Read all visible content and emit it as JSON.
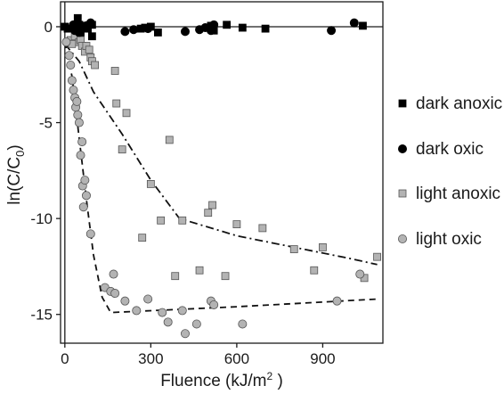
{
  "chart_data": {
    "type": "scatter",
    "title": "",
    "xlabel": {
      "main": "Fluence (kJ/m",
      "sup": "2",
      "tail": " )"
    },
    "ylabel": {
      "main": "ln(C/C",
      "sub": "0",
      "tail": ")"
    },
    "xlim": [
      -15,
      1110
    ],
    "ylim": [
      -16.5,
      1.3
    ],
    "xticks": [
      0,
      300,
      600,
      900
    ],
    "yticks": [
      0,
      -5,
      -10,
      -15
    ],
    "grid": false,
    "legend_position": "right",
    "colors": {
      "dark": "#000000",
      "light_fill": "#b3b3b3",
      "light_stroke": "#555555"
    },
    "series": [
      {
        "name": "dark anoxic",
        "marker": "square",
        "style": "dark",
        "points": [
          [
            0,
            0
          ],
          [
            10,
            -0.1
          ],
          [
            40,
            -0.2
          ],
          [
            45,
            0.45
          ],
          [
            50,
            0.1
          ],
          [
            55,
            -0.3
          ],
          [
            75,
            0.05
          ],
          [
            80,
            -0.1
          ],
          [
            95,
            -0.5
          ],
          [
            95,
            0.1
          ],
          [
            265,
            -0.1
          ],
          [
            280,
            -0.05
          ],
          [
            300,
            0
          ],
          [
            325,
            -0.3
          ],
          [
            500,
            -0.05
          ],
          [
            510,
            0.05
          ],
          [
            520,
            -0.2
          ],
          [
            565,
            0.1
          ],
          [
            620,
            -0.05
          ],
          [
            700,
            -0.1
          ],
          [
            1040,
            0.05
          ]
        ]
      },
      {
        "name": "dark oxic",
        "marker": "circle",
        "style": "dark",
        "points": [
          [
            30,
            0.1
          ],
          [
            35,
            -0.2
          ],
          [
            50,
            -0.3
          ],
          [
            75,
            0.05
          ],
          [
            90,
            0.2
          ],
          [
            210,
            -0.25
          ],
          [
            240,
            -0.15
          ],
          [
            290,
            -0.1
          ],
          [
            420,
            -0.25
          ],
          [
            470,
            -0.15
          ],
          [
            490,
            -0.05
          ],
          [
            510,
            -0.2
          ],
          [
            520,
            0.1
          ],
          [
            930,
            -0.2
          ],
          [
            1010,
            0.2
          ]
        ]
      },
      {
        "name": "light anoxic",
        "marker": "square",
        "style": "light",
        "points": [
          [
            20,
            -0.7
          ],
          [
            25,
            -0.9
          ],
          [
            35,
            -0.5
          ],
          [
            50,
            -0.8
          ],
          [
            55,
            -0.7
          ],
          [
            60,
            -1.0
          ],
          [
            70,
            -1.3
          ],
          [
            75,
            -1.0
          ],
          [
            85,
            -1.2
          ],
          [
            90,
            -1.6
          ],
          [
            95,
            -1.8
          ],
          [
            105,
            -2.0
          ],
          [
            175,
            -2.3
          ],
          [
            180,
            -4.0
          ],
          [
            200,
            -6.4
          ],
          [
            215,
            -4.5
          ],
          [
            270,
            -11.0
          ],
          [
            300,
            -8.2
          ],
          [
            335,
            -10.1
          ],
          [
            365,
            -5.9
          ],
          [
            385,
            -13.0
          ],
          [
            410,
            -10.1
          ],
          [
            470,
            -12.7
          ],
          [
            500,
            -9.7
          ],
          [
            515,
            -9.3
          ],
          [
            560,
            -13.0
          ],
          [
            600,
            -10.3
          ],
          [
            690,
            -10.5
          ],
          [
            800,
            -11.6
          ],
          [
            870,
            -12.7
          ],
          [
            900,
            -11.5
          ],
          [
            1045,
            -13.1
          ],
          [
            1090,
            -12.0
          ]
        ]
      },
      {
        "name": "light oxic",
        "marker": "circle",
        "style": "light",
        "points": [
          [
            5,
            -0.8
          ],
          [
            15,
            -1.5
          ],
          [
            20,
            -2.0
          ],
          [
            25,
            -2.8
          ],
          [
            30,
            -3.3
          ],
          [
            35,
            -3.7
          ],
          [
            38,
            -4.2
          ],
          [
            42,
            -3.9
          ],
          [
            45,
            -4.6
          ],
          [
            50,
            -5.0
          ],
          [
            55,
            -6.7
          ],
          [
            60,
            -6.0
          ],
          [
            62,
            -8.3
          ],
          [
            65,
            -9.4
          ],
          [
            70,
            -8.0
          ],
          [
            75,
            -8.8
          ],
          [
            90,
            -10.8
          ],
          [
            140,
            -13.6
          ],
          [
            160,
            -13.8
          ],
          [
            170,
            -12.9
          ],
          [
            175,
            -13.9
          ],
          [
            210,
            -14.3
          ],
          [
            250,
            -14.8
          ],
          [
            290,
            -14.2
          ],
          [
            340,
            -14.9
          ],
          [
            360,
            -15.4
          ],
          [
            410,
            -14.8
          ],
          [
            420,
            -16.0
          ],
          [
            460,
            -15.5
          ],
          [
            510,
            -14.3
          ],
          [
            520,
            -14.5
          ],
          [
            620,
            -15.5
          ],
          [
            950,
            -14.3
          ],
          [
            1030,
            -12.9
          ]
        ]
      }
    ],
    "fit_lines": [
      {
        "series": "light anoxic",
        "dash": "dashdot",
        "points": [
          [
            0,
            -0.9
          ],
          [
            50,
            -1.8
          ],
          [
            100,
            -3.4
          ],
          [
            200,
            -5.6
          ],
          [
            300,
            -8.0
          ],
          [
            400,
            -10.0
          ],
          [
            600,
            -10.9
          ],
          [
            800,
            -11.5
          ],
          [
            1000,
            -12.1
          ],
          [
            1090,
            -12.4
          ]
        ]
      },
      {
        "series": "light oxic",
        "dash": "dashed",
        "points": [
          [
            0,
            -0.8
          ],
          [
            25,
            -2.6
          ],
          [
            50,
            -5.8
          ],
          [
            75,
            -9.0
          ],
          [
            100,
            -11.9
          ],
          [
            130,
            -14.1
          ],
          [
            160,
            -14.9
          ],
          [
            600,
            -14.6
          ],
          [
            1090,
            -14.2
          ]
        ]
      }
    ]
  }
}
